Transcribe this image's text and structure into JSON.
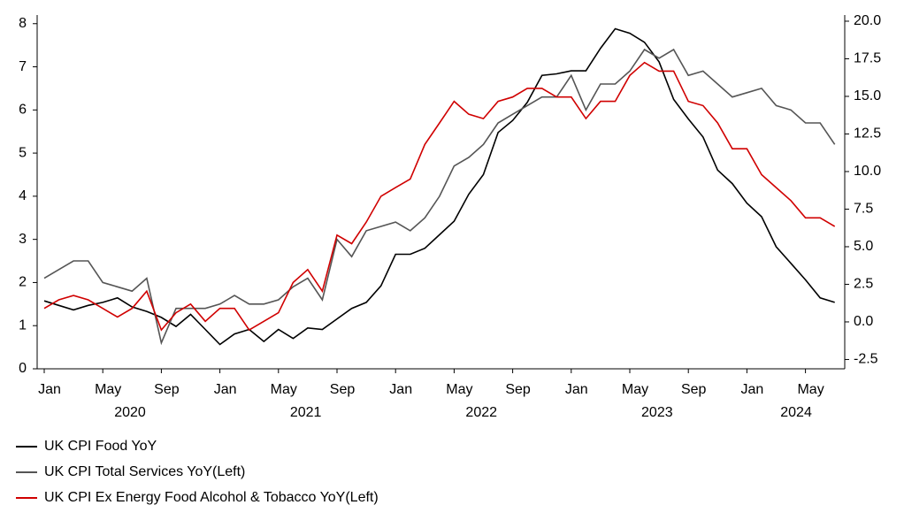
{
  "chart_data": {
    "type": "line",
    "categories": [
      "Jan",
      null,
      null,
      null,
      "May",
      null,
      null,
      null,
      "Sep",
      null,
      null,
      null,
      "Jan",
      null,
      null,
      null,
      "May",
      null,
      null,
      null,
      "Sep",
      null,
      null,
      null,
      "Jan",
      null,
      null,
      null,
      "May",
      null,
      null,
      null,
      "Sep",
      null,
      null,
      null,
      "Jan",
      null,
      null,
      null,
      "May",
      null,
      null,
      null,
      "Sep",
      null,
      null,
      null,
      "Jan",
      null,
      null,
      null,
      "May",
      null,
      null
    ],
    "years": [
      "2020",
      "2021",
      "2022",
      "2023",
      "2024"
    ],
    "series": [
      {
        "name": "UK CPI Food YoY",
        "color": "#000000",
        "axis": "y2",
        "values": [
          1.4,
          1.1,
          0.8,
          1.1,
          1.3,
          1.6,
          1.0,
          0.7,
          0.3,
          -0.3,
          0.5,
          -0.5,
          -1.5,
          -0.8,
          -0.5,
          -1.3,
          -0.5,
          -1.1,
          -0.4,
          -0.5,
          0.2,
          0.9,
          1.3,
          2.4,
          4.5,
          4.5,
          4.9,
          5.8,
          6.7,
          8.5,
          9.8,
          12.6,
          13.4,
          14.6,
          16.4,
          16.5,
          16.7,
          16.7,
          18.2,
          19.5,
          19.2,
          18.6,
          17.3,
          14.8,
          13.5,
          12.3,
          10.1,
          9.2,
          7.9,
          7.0,
          5.0,
          3.9,
          2.8,
          1.6,
          1.3
        ]
      },
      {
        "name": "UK CPI Total Services YoY(Left)",
        "color": "#555555",
        "values": [
          2.1,
          2.3,
          2.5,
          2.5,
          2.0,
          1.9,
          1.8,
          2.1,
          0.6,
          1.4,
          1.4,
          1.4,
          1.5,
          1.7,
          1.5,
          1.5,
          1.6,
          1.9,
          2.1,
          1.6,
          3.0,
          2.6,
          3.2,
          3.3,
          3.4,
          3.2,
          3.5,
          4.0,
          4.7,
          4.9,
          5.2,
          5.7,
          5.9,
          6.1,
          6.3,
          6.3,
          6.8,
          6.0,
          6.6,
          6.6,
          6.9,
          7.4,
          7.2,
          7.4,
          6.8,
          6.9,
          6.6,
          6.3,
          6.4,
          6.5,
          6.1,
          6.0,
          5.7,
          5.7,
          5.2
        ]
      },
      {
        "name": "UK CPI Ex Energy Food Alcohol & Tobacco YoY(Left)",
        "color": "#d00000",
        "values": [
          1.4,
          1.6,
          1.7,
          1.6,
          1.4,
          1.2,
          1.4,
          1.8,
          0.9,
          1.3,
          1.5,
          1.1,
          1.4,
          1.4,
          0.9,
          1.1,
          1.3,
          2.0,
          2.3,
          1.8,
          3.1,
          2.9,
          3.4,
          4.0,
          4.2,
          4.4,
          5.2,
          5.7,
          6.2,
          5.9,
          5.8,
          6.2,
          6.3,
          6.5,
          6.5,
          6.3,
          6.3,
          5.8,
          6.2,
          6.2,
          6.8,
          7.1,
          6.9,
          6.9,
          6.2,
          6.1,
          5.7,
          5.1,
          5.1,
          4.5,
          4.2,
          3.9,
          3.5,
          3.5,
          3.3
        ]
      }
    ],
    "ylim": [
      0,
      8.2
    ],
    "yticks": [
      0,
      1,
      2,
      3,
      4,
      5,
      6,
      7,
      8
    ],
    "y2lim": [
      -3.12,
      20.41
    ],
    "y2ticks": [
      {
        "value": 20,
        "label": "20.0"
      },
      17.5,
      {
        "value": 15,
        "label": "15.0"
      },
      12.5,
      {
        "value": 10,
        "label": "10.0"
      },
      7.5,
      {
        "value": 5,
        "label": "5.0"
      },
      2.5,
      {
        "value": 0,
        "label": "0.0"
      },
      -2.5
    ],
    "grid": false
  }
}
